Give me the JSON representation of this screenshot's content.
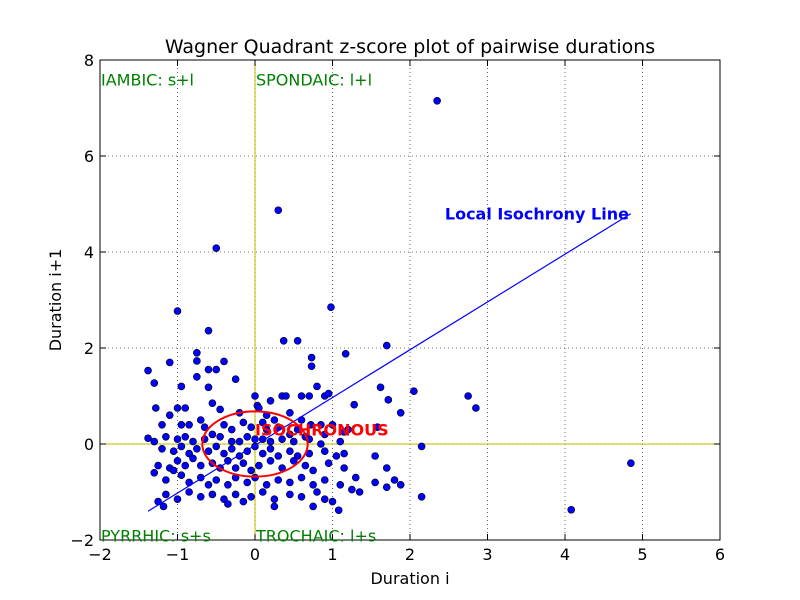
{
  "chart_data": {
    "type": "scatter",
    "title": "Wagner Quadrant z-score plot of pairwise durations",
    "xlabel": "Duration i",
    "ylabel": "Duration i+1",
    "xlim": [
      -2,
      6
    ],
    "ylim": [
      -2,
      8
    ],
    "xticks": [
      -2,
      -1,
      0,
      1,
      2,
      3,
      4,
      5,
      6
    ],
    "yticks": [
      -2,
      0,
      2,
      4,
      6,
      8
    ],
    "grid": true,
    "colors": {
      "points": "#0000ff",
      "point_edge": "#000000",
      "quadrant_labels": "#008000",
      "isochrony_line": "#0000ff",
      "isochronous": "#ff0000",
      "center_lines": "#bfbf00"
    },
    "quadrant_labels": [
      {
        "text": "IAMBIC: s+l",
        "x": -2.0,
        "y": 7.8
      },
      {
        "text": "SPONDAIC: l+l",
        "x": 0.0,
        "y": 7.8
      },
      {
        "text": "PYRRHIC: s+s",
        "x": -2.0,
        "y": -1.7
      },
      {
        "text": "TROCHAIC: l+s",
        "x": 0.0,
        "y": -1.7
      }
    ],
    "isochrony_line": {
      "label": "Local Isochrony Line",
      "x1": -1.38,
      "y1": -1.4,
      "x2": 4.85,
      "y2": 4.8,
      "label_x": 2.45,
      "label_y": 4.68
    },
    "isochronous_region": {
      "label": "ISOCHRONOUS",
      "cx": 0.0,
      "cy": 0.0,
      "rx": 0.68,
      "ry": 0.68,
      "label_x": 0.0,
      "label_y": 0.3
    },
    "points": [
      [
        2.35,
        7.15
      ],
      [
        0.3,
        4.87
      ],
      [
        -0.5,
        4.08
      ],
      [
        -1.0,
        2.77
      ],
      [
        -0.6,
        2.36
      ],
      [
        0.37,
        2.15
      ],
      [
        0.55,
        2.15
      ],
      [
        0.98,
        2.85
      ],
      [
        1.17,
        1.88
      ],
      [
        1.7,
        2.05
      ],
      [
        -0.75,
        1.9
      ],
      [
        -1.1,
        1.7
      ],
      [
        -0.75,
        1.73
      ],
      [
        -0.4,
        1.72
      ],
      [
        -0.6,
        1.55
      ],
      [
        -0.5,
        1.55
      ],
      [
        0.73,
        1.8
      ],
      [
        0.73,
        1.62
      ],
      [
        -1.38,
        1.53
      ],
      [
        -1.3,
        1.27
      ],
      [
        -0.95,
        1.2
      ],
      [
        -0.75,
        1.4
      ],
      [
        -0.6,
        1.18
      ],
      [
        -0.25,
        1.35
      ],
      [
        0.35,
        1.0
      ],
      [
        0.4,
        1.0
      ],
      [
        0.0,
        1.0
      ],
      [
        0.2,
        0.9
      ],
      [
        0.6,
        1.0
      ],
      [
        0.7,
        1.0
      ],
      [
        0.8,
        1.2
      ],
      [
        0.9,
        1.0
      ],
      [
        0.95,
        1.05
      ],
      [
        1.28,
        0.82
      ],
      [
        1.62,
        1.18
      ],
      [
        1.72,
        0.92
      ],
      [
        1.88,
        0.65
      ],
      [
        2.05,
        1.1
      ],
      [
        2.75,
        1.0
      ],
      [
        2.85,
        0.75
      ],
      [
        -1.0,
        0.75
      ],
      [
        -0.9,
        0.75
      ],
      [
        -0.55,
        0.85
      ],
      [
        -0.45,
        0.72
      ],
      [
        -0.2,
        0.65
      ],
      [
        0.03,
        0.8
      ],
      [
        0.05,
        0.75
      ],
      [
        0.15,
        0.6
      ],
      [
        0.25,
        0.5
      ],
      [
        0.45,
        0.65
      ],
      [
        0.6,
        0.5
      ],
      [
        0.72,
        0.4
      ],
      [
        0.85,
        0.4
      ],
      [
        1.0,
        0.4
      ],
      [
        1.2,
        0.3
      ],
      [
        1.58,
        0.35
      ],
      [
        -1.28,
        0.75
      ],
      [
        -1.1,
        0.6
      ],
      [
        -1.2,
        0.4
      ],
      [
        -0.95,
        0.4
      ],
      [
        -0.85,
        0.4
      ],
      [
        -0.7,
        0.5
      ],
      [
        -0.65,
        0.35
      ],
      [
        -0.4,
        0.4
      ],
      [
        -0.3,
        0.3
      ],
      [
        -0.15,
        0.45
      ],
      [
        -0.05,
        0.35
      ],
      [
        0.1,
        0.45
      ],
      [
        0.15,
        0.3
      ],
      [
        0.3,
        0.35
      ],
      [
        0.45,
        0.2
      ],
      [
        0.55,
        0.3
      ],
      [
        0.65,
        0.15
      ],
      [
        0.9,
        0.2
      ],
      [
        1.15,
        0.25
      ],
      [
        -1.38,
        0.12
      ],
      [
        -1.3,
        0.05
      ],
      [
        -1.15,
        0.15
      ],
      [
        -1.0,
        0.1
      ],
      [
        -0.9,
        0.15
      ],
      [
        -0.8,
        0.05
      ],
      [
        -0.65,
        0.1
      ],
      [
        -0.55,
        0.2
      ],
      [
        -0.45,
        0.15
      ],
      [
        -0.3,
        0.05
      ],
      [
        -0.2,
        0.05
      ],
      [
        -0.1,
        0.15
      ],
      [
        0.0,
        0.1
      ],
      [
        0.1,
        0.1
      ],
      [
        0.2,
        0.05
      ],
      [
        0.35,
        0.1
      ],
      [
        0.5,
        0.05
      ],
      [
        0.7,
        0.1
      ],
      [
        0.85,
        0.0
      ],
      [
        1.1,
        0.05
      ],
      [
        2.15,
        -0.05
      ],
      [
        -1.2,
        -0.1
      ],
      [
        -1.05,
        -0.15
      ],
      [
        -0.95,
        -0.05
      ],
      [
        -0.85,
        -0.2
      ],
      [
        -0.75,
        -0.1
      ],
      [
        -0.6,
        -0.15
      ],
      [
        -0.5,
        -0.05
      ],
      [
        -0.4,
        -0.2
      ],
      [
        -0.3,
        -0.1
      ],
      [
        -0.2,
        -0.25
      ],
      [
        -0.1,
        -0.15
      ],
      [
        0.0,
        -0.05
      ],
      [
        0.1,
        -0.2
      ],
      [
        0.2,
        -0.1
      ],
      [
        0.3,
        -0.25
      ],
      [
        0.45,
        -0.15
      ],
      [
        0.55,
        -0.25
      ],
      [
        0.7,
        -0.2
      ],
      [
        0.9,
        -0.15
      ],
      [
        1.05,
        -0.25
      ],
      [
        1.15,
        -0.2
      ],
      [
        1.55,
        -0.25
      ],
      [
        4.85,
        -0.4
      ],
      [
        -1.25,
        -0.45
      ],
      [
        -1.1,
        -0.5
      ],
      [
        -1.0,
        -0.35
      ],
      [
        -0.9,
        -0.45
      ],
      [
        -0.8,
        -0.3
      ],
      [
        -0.7,
        -0.45
      ],
      [
        -0.55,
        -0.4
      ],
      [
        -0.45,
        -0.5
      ],
      [
        -0.35,
        -0.35
      ],
      [
        -0.25,
        -0.5
      ],
      [
        -0.15,
        -0.4
      ],
      [
        -0.05,
        -0.55
      ],
      [
        0.05,
        -0.45
      ],
      [
        0.2,
        -0.35
      ],
      [
        0.35,
        -0.5
      ],
      [
        0.5,
        -0.35
      ],
      [
        0.65,
        -0.45
      ],
      [
        0.75,
        -0.55
      ],
      [
        0.95,
        -0.4
      ],
      [
        1.15,
        -0.5
      ],
      [
        1.7,
        -0.5
      ],
      [
        -1.3,
        -0.6
      ],
      [
        -1.15,
        -0.75
      ],
      [
        -1.05,
        -0.55
      ],
      [
        -0.95,
        -0.65
      ],
      [
        -0.85,
        -0.8
      ],
      [
        -0.7,
        -0.7
      ],
      [
        -0.6,
        -0.85
      ],
      [
        -0.5,
        -0.75
      ],
      [
        -0.35,
        -0.85
      ],
      [
        -0.25,
        -0.7
      ],
      [
        -0.1,
        -0.8
      ],
      [
        0.0,
        -0.7
      ],
      [
        0.15,
        -0.85
      ],
      [
        0.3,
        -0.75
      ],
      [
        0.45,
        -0.8
      ],
      [
        0.6,
        -0.7
      ],
      [
        0.75,
        -0.85
      ],
      [
        0.9,
        -0.75
      ],
      [
        1.1,
        -0.85
      ],
      [
        1.3,
        -0.7
      ],
      [
        1.55,
        -0.8
      ],
      [
        1.7,
        -0.9
      ],
      [
        1.8,
        -0.75
      ],
      [
        1.88,
        -0.85
      ],
      [
        -1.15,
        -1.05
      ],
      [
        -1.0,
        -1.15
      ],
      [
        -0.85,
        -1.0
      ],
      [
        -0.7,
        -1.1
      ],
      [
        -0.55,
        -1.05
      ],
      [
        -0.4,
        -1.15
      ],
      [
        -0.25,
        -1.05
      ],
      [
        -0.05,
        -1.1
      ],
      [
        0.1,
        -1.0
      ],
      [
        0.25,
        -1.15
      ],
      [
        0.45,
        -1.05
      ],
      [
        0.6,
        -1.1
      ],
      [
        0.8,
        -1.0
      ],
      [
        0.9,
        -1.15
      ],
      [
        1.0,
        -1.2
      ],
      [
        1.25,
        -0.95
      ],
      [
        1.35,
        -1.0
      ],
      [
        2.15,
        -1.1
      ],
      [
        -1.25,
        -1.2
      ],
      [
        -1.18,
        -1.3
      ],
      [
        -0.35,
        -1.25
      ],
      [
        0.25,
        -1.3
      ],
      [
        0.75,
        -1.3
      ],
      [
        1.08,
        -1.38
      ],
      [
        4.08,
        -1.37
      ],
      [
        -0.15,
        -1.2
      ]
    ]
  }
}
